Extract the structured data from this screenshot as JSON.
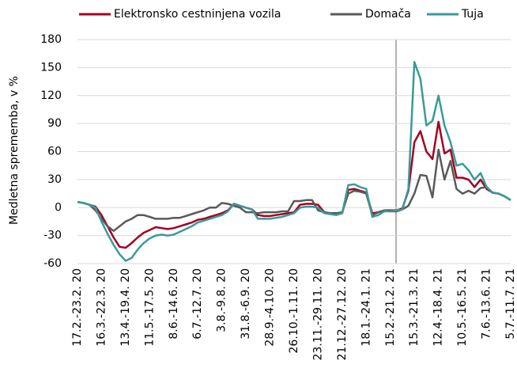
{
  "chart_data": {
    "type": "line",
    "y_label": "Medletna sprememba, v %",
    "categories": [
      "17.2.-23.2. 20",
      null,
      null,
      null,
      "16.3.-22.3. 20",
      null,
      null,
      null,
      "13.4.-19.4. 20",
      null,
      null,
      null,
      "11.5.-17.5. 20",
      null,
      null,
      null,
      "8.6.-14.6. 20",
      null,
      null,
      null,
      "6.7.-12.7. 20",
      null,
      null,
      null,
      "3.8.-9.8. 20",
      null,
      null,
      null,
      "31.8.-6.9. 20",
      null,
      null,
      null,
      "28.9.-4.10. 20",
      null,
      null,
      null,
      "26.10.-1.11. 20",
      null,
      null,
      null,
      "23.11.-29.11. 20",
      null,
      null,
      null,
      "21.12.-27.12. 20",
      null,
      null,
      null,
      "18.1.-24.1. 21",
      null,
      null,
      null,
      "15.2.-21.2. 21",
      null,
      null,
      null,
      "15.3.-21.3. 21",
      null,
      null,
      null,
      "12.4.-18.4. 21",
      null,
      null,
      null,
      "10.5.-16.5. 21",
      null,
      null,
      null,
      "7.6.-13.6. 21",
      null,
      null,
      null,
      "5.7.-11.7. 21"
    ],
    "series": [
      {
        "name": "Elektronsko cestninjena vozila",
        "color": "#a50021",
        "values": [
          6,
          5,
          3,
          1,
          -8,
          -20,
          -32,
          -42,
          -43,
          -38,
          -32,
          -27,
          -24,
          -21,
          -22,
          -23,
          -22,
          -20,
          -18,
          -16,
          -13,
          -12,
          -10,
          -8,
          -6,
          -3,
          4,
          2,
          0,
          -2,
          -8,
          -9,
          -9,
          -8,
          -7,
          -6,
          -5,
          3,
          4,
          4,
          3,
          -5,
          -6,
          -7,
          -6,
          19,
          20,
          18,
          16,
          -6,
          -5,
          -3,
          -3,
          -3,
          -1,
          18,
          70,
          82,
          60,
          52,
          92,
          58,
          62,
          32,
          32,
          30,
          22,
          30,
          20,
          16,
          15,
          12,
          8
        ]
      },
      {
        "name": "Domača",
        "color": "#595959",
        "values": [
          6,
          5,
          3,
          -3,
          -12,
          -20,
          -25,
          -20,
          -15,
          -12,
          -8,
          -8,
          -10,
          -12,
          -12,
          -12,
          -11,
          -11,
          -9,
          -7,
          -5,
          -3,
          0,
          0,
          5,
          4,
          2,
          0,
          -5,
          -5,
          -6,
          -5,
          -5,
          -5,
          -4,
          -4,
          7,
          7,
          8,
          8,
          -3,
          -5,
          -6,
          -6,
          -5,
          15,
          18,
          17,
          15,
          -8,
          -5,
          -3,
          -4,
          -4,
          -2,
          2,
          15,
          35,
          34,
          11,
          62,
          30,
          50,
          20,
          15,
          18,
          15,
          21,
          22,
          16,
          15,
          12,
          8
        ]
      },
      {
        "name": "Tuja",
        "color": "#3a9a9a",
        "values": [
          6,
          5,
          3,
          0,
          -15,
          -28,
          -40,
          -50,
          -57,
          -54,
          -45,
          -38,
          -33,
          -30,
          -29,
          -30,
          -29,
          -26,
          -23,
          -20,
          -16,
          -14,
          -12,
          -10,
          -8,
          -4,
          4,
          2,
          0,
          -2,
          -12,
          -12,
          -12,
          -11,
          -10,
          -8,
          -6,
          0,
          1,
          1,
          0,
          -6,
          -7,
          -8,
          -6,
          24,
          25,
          22,
          20,
          -10,
          -8,
          -4,
          -4,
          -3,
          -2,
          20,
          156,
          138,
          88,
          93,
          120,
          88,
          70,
          45,
          47,
          40,
          30,
          37,
          22,
          16,
          15,
          12,
          8
        ]
      }
    ],
    "ylim": [
      -60,
      180
    ],
    "yticks": [
      -60,
      -30,
      0,
      30,
      60,
      90,
      120,
      150,
      180
    ],
    "grid": true
  }
}
